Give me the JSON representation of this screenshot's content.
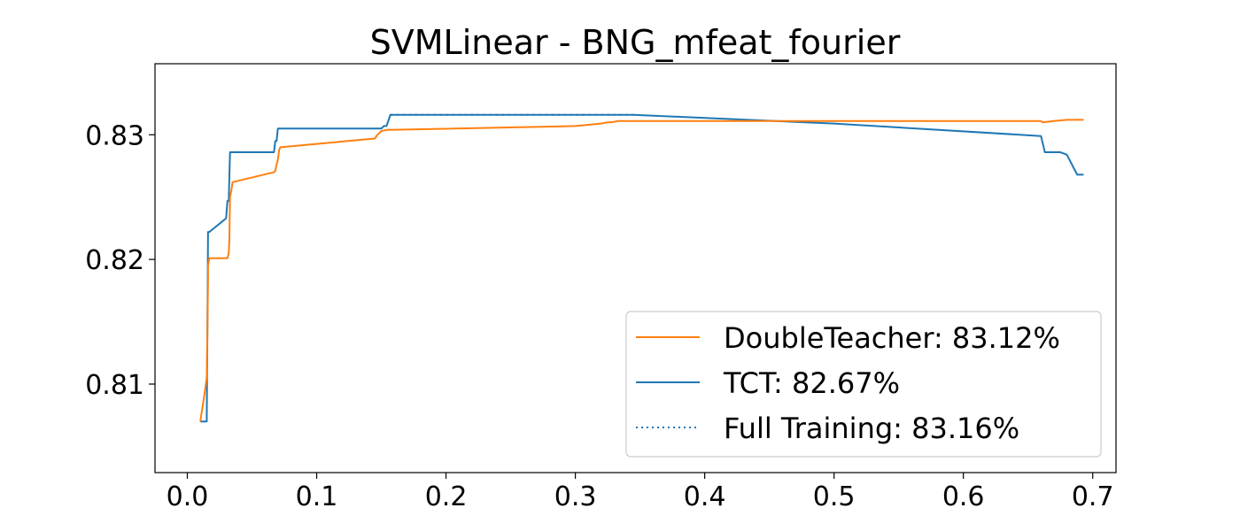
{
  "chart_data": {
    "type": "line",
    "title": "SVMLinear - BNG_mfeat_fourier",
    "xlabel": "",
    "ylabel": "",
    "xlim": [
      -0.025,
      0.718
    ],
    "ylim": [
      0.8029,
      0.8357
    ],
    "x_ticks": [
      0.0,
      0.1,
      0.2,
      0.3,
      0.4,
      0.5,
      0.6,
      0.7
    ],
    "x_tick_labels": [
      "0.0",
      "0.1",
      "0.2",
      "0.3",
      "0.4",
      "0.5",
      "0.6",
      "0.7"
    ],
    "y_ticks": [
      0.81,
      0.82,
      0.83
    ],
    "y_tick_labels": [
      "0.81",
      "0.82",
      "0.83"
    ],
    "grid": false,
    "legend_position": "lower-right",
    "series": [
      {
        "name": "DoubleTeacher: 83.12%",
        "label": "DoubleTeacher: 83.12%",
        "color": "#ff7f0e",
        "style": "solid",
        "x": [
          0.01,
          0.013,
          0.015,
          0.0155,
          0.016,
          0.016,
          0.017,
          0.03,
          0.031,
          0.032,
          0.0325,
          0.033,
          0.034,
          0.035,
          0.067,
          0.068,
          0.069,
          0.07,
          0.071,
          0.072,
          0.145,
          0.147,
          0.15,
          0.155,
          0.16,
          0.3,
          0.31,
          0.32,
          0.325,
          0.328,
          0.333,
          0.335,
          0.5,
          0.66,
          0.661,
          0.67,
          0.68,
          0.69,
          0.693
        ],
        "y": [
          0.807,
          0.809,
          0.8105,
          0.814,
          0.8185,
          0.8195,
          0.8201,
          0.8201,
          0.8201,
          0.8205,
          0.8215,
          0.825,
          0.8255,
          0.8262,
          0.827,
          0.8271,
          0.8276,
          0.828,
          0.8288,
          0.829,
          0.8297,
          0.83,
          0.8303,
          0.8304,
          0.8304,
          0.8307,
          0.8308,
          0.8309,
          0.831,
          0.831,
          0.8311,
          0.8311,
          0.8311,
          0.8311,
          0.831,
          0.8311,
          0.8312,
          0.8312,
          0.8312
        ]
      },
      {
        "name": "TCT: 82.67%",
        "label": "TCT: 82.67%",
        "color": "#1f77b4",
        "style": "solid",
        "x": [
          0.01,
          0.015,
          0.0155,
          0.016,
          0.017,
          0.03,
          0.031,
          0.032,
          0.033,
          0.034,
          0.067,
          0.068,
          0.069,
          0.07,
          0.15,
          0.152,
          0.154,
          0.155,
          0.157,
          0.16,
          0.3,
          0.345,
          0.5,
          0.66,
          0.663,
          0.675,
          0.68,
          0.688,
          0.693
        ],
        "y": [
          0.807,
          0.807,
          0.814,
          0.8222,
          0.8222,
          0.8233,
          0.8247,
          0.8247,
          0.8286,
          0.8286,
          0.8286,
          0.8295,
          0.8295,
          0.8305,
          0.8305,
          0.8307,
          0.8307,
          0.831,
          0.8316,
          0.8316,
          0.8316,
          0.8316,
          0.8309,
          0.8299,
          0.8286,
          0.8286,
          0.8284,
          0.8268,
          0.8268
        ]
      },
      {
        "name": "Full Training: 83.16%",
        "label": "Full Training: 83.16%",
        "color": "#1f77b4",
        "style": "dotted",
        "x": [
          0.157,
          0.345
        ],
        "y": [
          0.8316,
          0.8316
        ]
      }
    ]
  }
}
